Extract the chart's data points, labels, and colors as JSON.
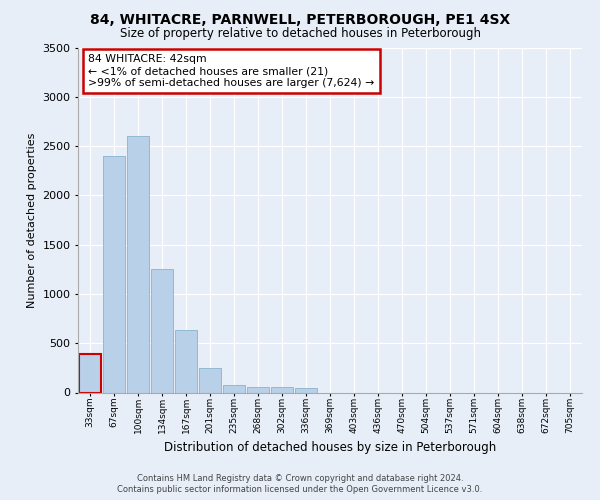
{
  "title": "84, WHITACRE, PARNWELL, PETERBOROUGH, PE1 4SX",
  "subtitle": "Size of property relative to detached houses in Peterborough",
  "xlabel": "Distribution of detached houses by size in Peterborough",
  "ylabel": "Number of detached properties",
  "bar_color": "#b8d0e8",
  "bar_edge_color": "#7aaac8",
  "background_color": "#e8eef8",
  "grid_color": "#ffffff",
  "categories": [
    "33sqm",
    "67sqm",
    "100sqm",
    "134sqm",
    "167sqm",
    "201sqm",
    "235sqm",
    "268sqm",
    "302sqm",
    "336sqm",
    "369sqm",
    "403sqm",
    "436sqm",
    "470sqm",
    "504sqm",
    "537sqm",
    "571sqm",
    "604sqm",
    "638sqm",
    "672sqm",
    "705sqm"
  ],
  "values": [
    390,
    2400,
    2600,
    1250,
    630,
    250,
    80,
    60,
    55,
    50,
    0,
    0,
    0,
    0,
    0,
    0,
    0,
    0,
    0,
    0,
    0
  ],
  "ylim": [
    0,
    3500
  ],
  "yticks": [
    0,
    500,
    1000,
    1500,
    2000,
    2500,
    3000,
    3500
  ],
  "annotation_text_line1": "84 WHITACRE: 42sqm",
  "annotation_text_line2": "← <1% of detached houses are smaller (21)",
  "annotation_text_line3": ">99% of semi-detached houses are larger (7,624) →",
  "annotation_box_color": "#ffffff",
  "annotation_edge_color": "#cc0000",
  "footer_line1": "Contains HM Land Registry data © Crown copyright and database right 2024.",
  "footer_line2": "Contains public sector information licensed under the Open Government Licence v3.0.",
  "highlight_bar_index": 0,
  "highlight_bar_color": "#cc0000"
}
